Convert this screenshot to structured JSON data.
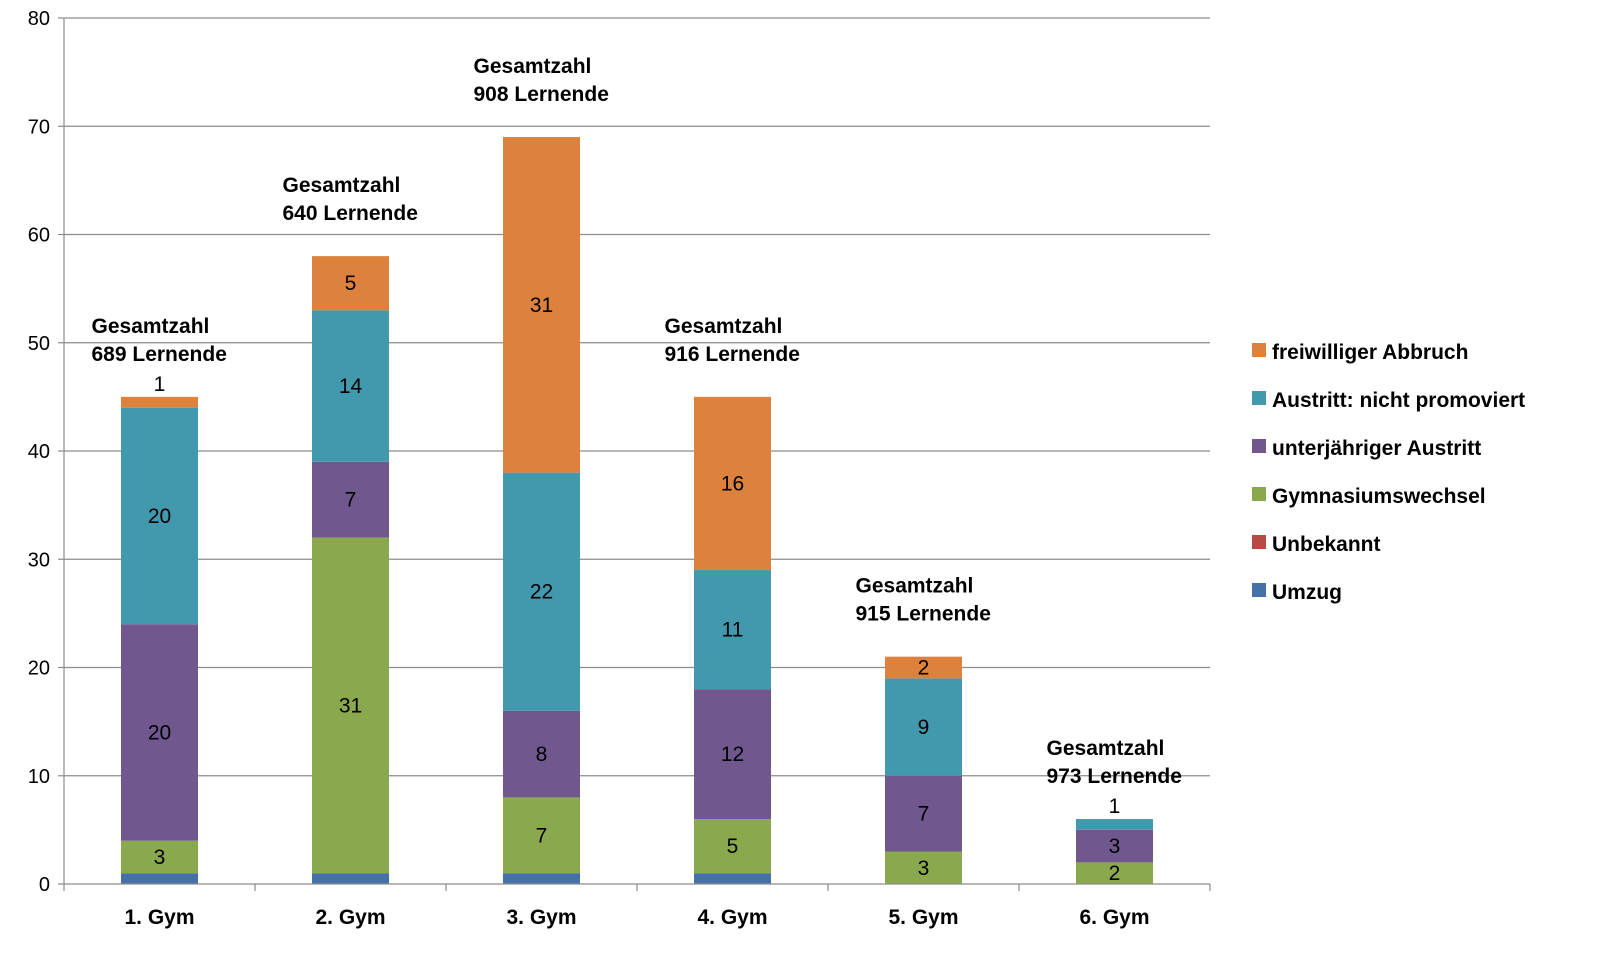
{
  "chart_data": {
    "type": "bar",
    "stacked": true,
    "ylim": [
      0,
      80
    ],
    "yticks": [
      0,
      10,
      20,
      30,
      40,
      50,
      60,
      70,
      80
    ],
    "grid": true,
    "legend_position": "right",
    "categories": [
      "1. Gym",
      "2. Gym",
      "3. Gym",
      "4. Gym",
      "5. Gym",
      "6. Gym"
    ],
    "series": [
      {
        "name": "Umzug",
        "color": "#4472a8",
        "values": [
          1,
          1,
          1,
          1,
          0,
          0
        ]
      },
      {
        "name": "Unbekannt",
        "color": "#b84a45",
        "values": [
          0,
          0,
          0,
          0,
          0,
          0
        ]
      },
      {
        "name": "Gymnasiumswechsel",
        "color": "#8aa84d",
        "values": [
          3,
          31,
          7,
          5,
          3,
          2
        ]
      },
      {
        "name": "unterjähriger Austritt",
        "color": "#70588f",
        "values": [
          20,
          7,
          8,
          12,
          7,
          3
        ]
      },
      {
        "name": "Austritt: nicht promoviert",
        "color": "#4298ad",
        "values": [
          20,
          14,
          22,
          11,
          9,
          1
        ]
      },
      {
        "name": "freiwilliger Abbruch",
        "color": "#dc823c",
        "values": [
          1,
          5,
          31,
          16,
          2,
          0
        ]
      }
    ],
    "totals_title": "Gesamtzahl",
    "totals": [
      "689 Lernende",
      "640 Lernende",
      "908 Lernende",
      "916 Lernende",
      "915 Lernende",
      "973 Lernende"
    ]
  }
}
